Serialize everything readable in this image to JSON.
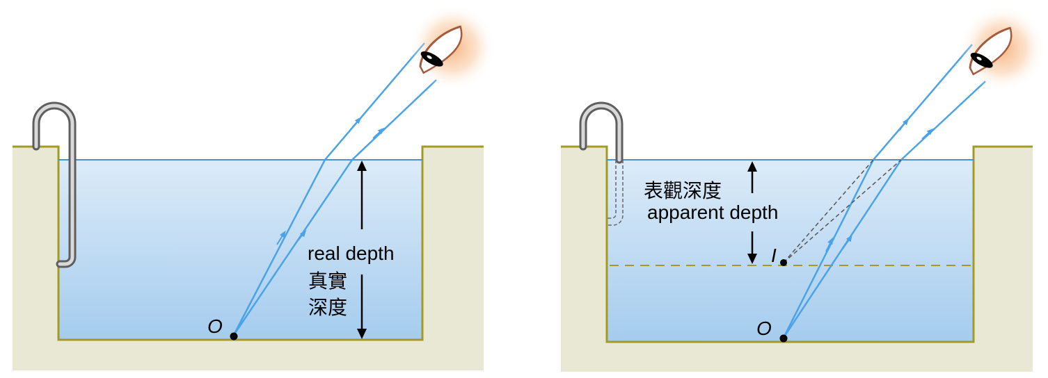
{
  "colors": {
    "ground": "#e9e8d5",
    "ground_edge": "#a39a25",
    "water_top": "#dcebf8",
    "water_bottom": "#a5ccee",
    "surface_line": "#4a8fd0",
    "ray": "#4aa3e8",
    "dashed_level": "#a39a25",
    "rail": "#8a8a8a",
    "eye_skin": "#a55a3c",
    "eye_glow": "#f6b07a"
  },
  "left_panel": {
    "object_label": "O",
    "depth_label_en": "real depth",
    "depth_label_zh_1": "真實",
    "depth_label_zh_2": "深度"
  },
  "right_panel": {
    "object_label": "O",
    "image_label": "I",
    "depth_label_zh": "表觀深度",
    "depth_label_en": "apparent depth"
  }
}
